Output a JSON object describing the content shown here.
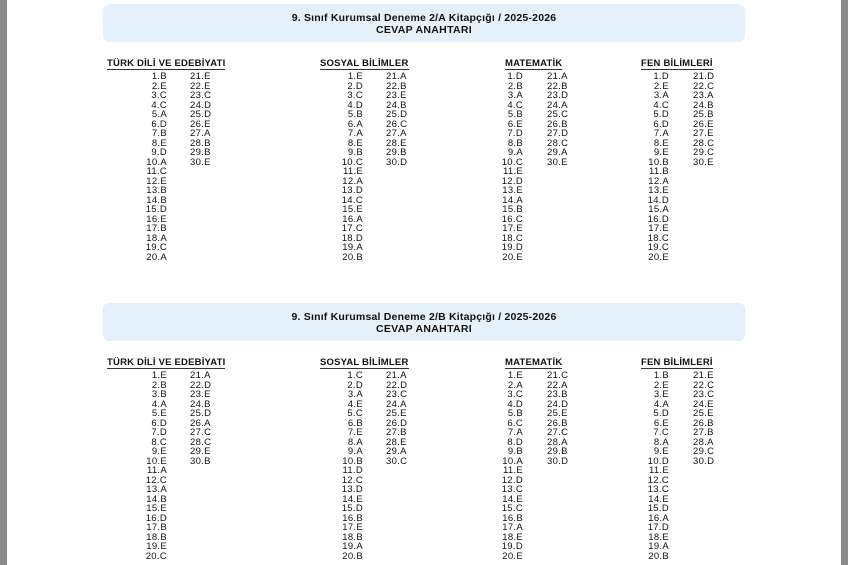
{
  "booklets": [
    {
      "title": "9. Sınıf Kurumsal Deneme 2/A Kitapçığı / 2025-2026",
      "subtitle": "CEVAP ANAHTARI",
      "sections": [
        {
          "name": "TÜRK DİLİ VE EDEBİYATI",
          "answers": [
            "1.B",
            "2.E",
            "3.C",
            "4.C",
            "5.A",
            "6.D",
            "7.B",
            "8.E",
            "9.D",
            "10.A",
            "11.C",
            "12.E",
            "13.B",
            "14.B",
            "15.D",
            "16.E",
            "17.B",
            "18.A",
            "19.C",
            "20.A",
            "21.E",
            "22.E",
            "23.C",
            "24.D",
            "25.D",
            "26.E",
            "27.A",
            "28.B",
            "29.B",
            "30.E"
          ]
        },
        {
          "name": "SOSYAL BİLİMLER",
          "answers": [
            "1.E",
            "2.D",
            "3.C",
            "4.D",
            "5.B",
            "6.A",
            "7.A",
            "8.E",
            "9.B",
            "10.C",
            "11.E",
            "12.A",
            "13.D",
            "14.C",
            "15.E",
            "16.A",
            "17.C",
            "18.D",
            "19.A",
            "20.B",
            "21.A",
            "22.B",
            "23.E",
            "24.B",
            "25.D",
            "26.C",
            "27.A",
            "28.E",
            "29.B",
            "30.D"
          ]
        },
        {
          "name": "MATEMATİK",
          "answers": [
            "1.D",
            "2.B",
            "3.A",
            "4.C",
            "5.B",
            "6.E",
            "7.D",
            "8.B",
            "9.A",
            "10.C",
            "11.E",
            "12.D",
            "13.E",
            "14.A",
            "15.B",
            "16.C",
            "17.E",
            "18.C",
            "19.D",
            "20.E",
            "21.A",
            "22.B",
            "23.D",
            "24.A",
            "25.C",
            "26.B",
            "27.D",
            "28.C",
            "29.A",
            "30.E"
          ]
        },
        {
          "name": "FEN BİLİMLERİ",
          "answers": [
            "1.D",
            "2.E",
            "3.A",
            "4.C",
            "5.D",
            "6.D",
            "7.A",
            "8.E",
            "9.E",
            "10.B",
            "11.B",
            "12.A",
            "13.E",
            "14.D",
            "15.A",
            "16.D",
            "17.E",
            "18.C",
            "19.C",
            "20.E",
            "21.D",
            "22.C",
            "23.A",
            "24.B",
            "25.B",
            "26.E",
            "27.E",
            "28.C",
            "29.C",
            "30.E"
          ]
        }
      ]
    },
    {
      "title": "9. Sınıf Kurumsal Deneme 2/B Kitapçığı / 2025-2026",
      "subtitle": "CEVAP ANAHTARI",
      "sections": [
        {
          "name": "TÜRK DİLİ VE EDEBİYATI",
          "answers": [
            "1.E",
            "2.B",
            "3.B",
            "4.A",
            "5.E",
            "6.D",
            "7.D",
            "8.C",
            "9.E",
            "10.E",
            "11.A",
            "12.C",
            "13.A",
            "14.B",
            "15.E",
            "16.D",
            "17.B",
            "18.B",
            "19.E",
            "20.C",
            "21.A",
            "22.D",
            "23.E",
            "24.B",
            "25.D",
            "26.A",
            "27.C",
            "28.C",
            "29.E",
            "30.B"
          ]
        },
        {
          "name": "SOSYAL BİLİMLER",
          "answers": [
            "1.C",
            "2.D",
            "3.A",
            "4.E",
            "5.C",
            "6.B",
            "7.E",
            "8.A",
            "9.A",
            "10.B",
            "11.D",
            "12.C",
            "13.D",
            "14.E",
            "15.D",
            "16.B",
            "17.E",
            "18.B",
            "19.A",
            "20.B",
            "21.A",
            "22.D",
            "23.C",
            "24.A",
            "25.E",
            "26.D",
            "27.B",
            "28.E",
            "29.A",
            "30.C"
          ]
        },
        {
          "name": "MATEMATİK",
          "answers": [
            "1.E",
            "2.A",
            "3.C",
            "4.D",
            "5.B",
            "6.C",
            "7.A",
            "8.D",
            "9.B",
            "10.A",
            "11.E",
            "12.D",
            "13.C",
            "14.E",
            "15.C",
            "16.B",
            "17.A",
            "18.E",
            "19.D",
            "20.E",
            "21.C",
            "22.A",
            "23.B",
            "24.D",
            "25.E",
            "26.B",
            "27.C",
            "28.A",
            "29.B",
            "30.D"
          ]
        },
        {
          "name": "FEN BİLİMLERİ",
          "answers": [
            "1.B",
            "2.E",
            "3.E",
            "4.A",
            "5.D",
            "6.E",
            "7.C",
            "8.A",
            "9.E",
            "10.D",
            "11.E",
            "12.C",
            "13.C",
            "14.E",
            "15.D",
            "16.A",
            "17.D",
            "18.E",
            "19.A",
            "20.B",
            "21.E",
            "22.C",
            "23.C",
            "24.E",
            "25.E",
            "26.B",
            "27.B",
            "28.A",
            "29.C",
            "30.D"
          ]
        }
      ]
    }
  ]
}
